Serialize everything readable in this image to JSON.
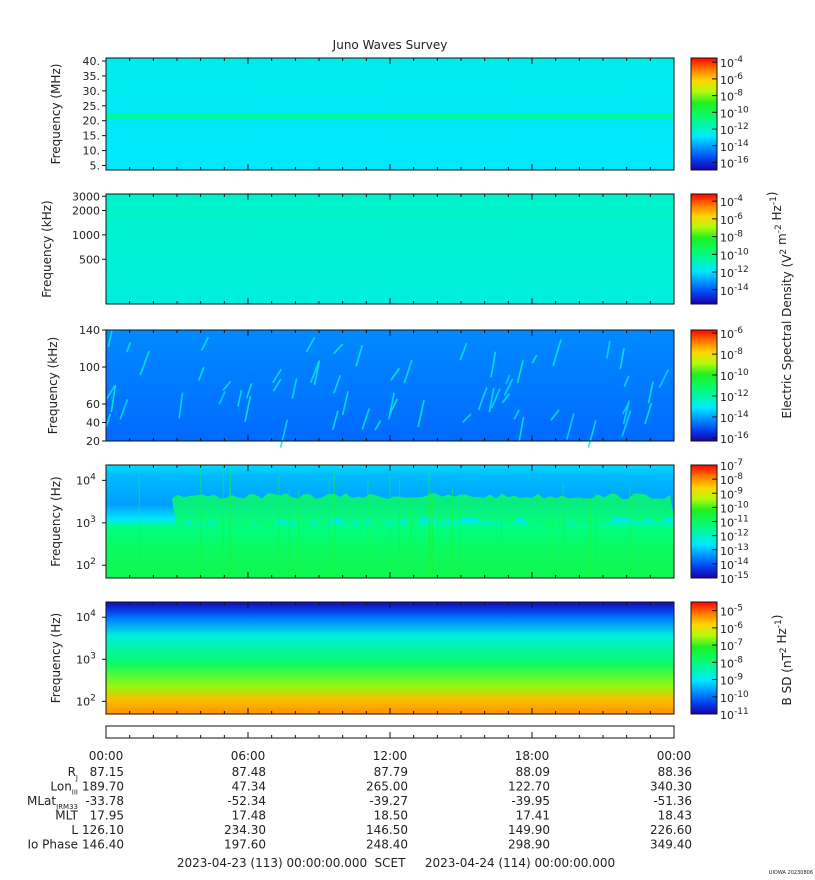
{
  "chart_data": {
    "type": "heatmap",
    "title": "Juno Waves Survey",
    "time_range": {
      "start_label": "2023-04-23 (113) 00:00:00.000",
      "mid_label": "SCET",
      "end_label": "2023-04-24 (114) 00:00:00.000"
    },
    "time_ticks": [
      "00:00",
      "06:00",
      "12:00",
      "18:00",
      "00:00"
    ],
    "panels": [
      {
        "ylabel": "Frequency (MHz)",
        "yscale": "linear",
        "yticks": [
          "40.",
          "35.",
          "30.",
          "25.",
          "20.",
          "15.",
          "10.",
          "5."
        ],
        "ytick_values": [
          40,
          35,
          30,
          25,
          20,
          15,
          10,
          5
        ],
        "ylim": [
          3.5,
          41
        ],
        "colorbar_ticks": [
          "10^-4",
          "10^-6",
          "10^-8",
          "10^-10",
          "10^-12",
          "10^-14",
          "10^-16"
        ],
        "colorbar_exp": [
          "-4",
          "-6",
          "-8",
          "-10",
          "-12",
          "-14",
          "-16"
        ],
        "colorbar_range_exp": [
          -3.5,
          -16.9
        ],
        "background_exp": -12.9,
        "bands": [
          {
            "center": 21.5,
            "width": 2.2,
            "level_exp": -11.3
          }
        ]
      },
      {
        "ylabel": "Frequency (kHz)",
        "yscale": "log",
        "yticks": [
          "3000",
          "2000",
          "1000",
          "500"
        ],
        "ytick_values": [
          3000,
          2000,
          1000,
          500
        ],
        "ylim": [
          140,
          3200
        ],
        "colorbar_ticks": [
          "10^-4",
          "10^-6",
          "10^-8",
          "10^-10",
          "10^-12",
          "10^-14"
        ],
        "colorbar_exp": [
          "-4",
          "-6",
          "-8",
          "-10",
          "-12",
          "-14"
        ],
        "colorbar_range_exp": [
          -3.2,
          -15.6
        ],
        "background_exp": -11.4,
        "bands": [
          {
            "center": 1800,
            "width": 120,
            "level_exp": -10.8
          }
        ]
      },
      {
        "ylabel": "Frequency (kHz)",
        "yscale": "linear",
        "yticks": [
          "140",
          "100",
          "60",
          "40",
          "20"
        ],
        "ytick_values": [
          140,
          100,
          60,
          40,
          20
        ],
        "ylim": [
          20,
          140
        ],
        "colorbar_ticks": [
          "10^-6",
          "10^-8",
          "10^-10",
          "10^-12",
          "10^-14",
          "10^-16"
        ],
        "colorbar_exp": [
          "-6",
          "-8",
          "-10",
          "-12",
          "-14",
          "-16"
        ],
        "colorbar_range_exp": [
          -5.7,
          -16.3
        ],
        "background_exp": -14.6
      },
      {
        "ylabel": "Frequency (Hz)",
        "yscale": "log",
        "yticks": [
          "10^4",
          "10^3",
          "10^2"
        ],
        "ytick_values": [
          10000,
          1000,
          100
        ],
        "ylim": [
          50,
          23000
        ],
        "colorbar_ticks": [
          "10^-7",
          "10^-8",
          "10^-9",
          "10^-10",
          "10^-11",
          "10^-12",
          "10^-13",
          "10^-14",
          "10^-15"
        ],
        "colorbar_exp": [
          "-7",
          "-8",
          "-9",
          "-10",
          "-11",
          "-12",
          "-13",
          "-14",
          "-15"
        ],
        "colorbar_range_exp": [
          -7,
          -15
        ],
        "background_exp": -13.3
      },
      {
        "ylabel": "Frequency (Hz)",
        "yscale": "log",
        "yticks": [
          "10^4",
          "10^3",
          "10^2"
        ],
        "ytick_values": [
          10000,
          1000,
          100
        ],
        "ylim": [
          50,
          23000
        ],
        "colorbar_ticks": [
          "10^-5",
          "10^-6",
          "10^-7",
          "10^-8",
          "10^-9",
          "10^-10",
          "10^-11"
        ],
        "colorbar_exp": [
          "-5",
          "-6",
          "-7",
          "-8",
          "-9",
          "-10",
          "-11"
        ],
        "colorbar_range_exp": [
          -4.5,
          -11
        ],
        "background_exp": -10.1
      }
    ],
    "colorbar_label_efield": "Electric Spectral Density (V^2 m^-2 Hz^-1)",
    "colorbar_label_bfield": "B SD (nT^2 Hz^-1)",
    "ephemeris": [
      {
        "label": "R",
        "sub": "J",
        "values": [
          "87.15",
          "87.48",
          "87.79",
          "88.09",
          "88.36"
        ]
      },
      {
        "label": "Lon",
        "sub": "III",
        "values": [
          "189.70",
          "47.34",
          "265.00",
          "122.70",
          "340.30"
        ]
      },
      {
        "label": "MLat",
        "sub": "JRM33",
        "values": [
          "-33.78",
          "-52.34",
          "-39.27",
          "-39.95",
          "-51.36"
        ]
      },
      {
        "label": "MLT",
        "sub": "",
        "values": [
          "17.95",
          "17.48",
          "18.50",
          "17.41",
          "18.43"
        ]
      },
      {
        "label": "L",
        "sub": "",
        "values": [
          "126.10",
          "234.30",
          "146.50",
          "149.90",
          "226.60"
        ]
      },
      {
        "label": "Io Phase",
        "sub": "",
        "values": [
          "146.40",
          "197.60",
          "248.40",
          "298.90",
          "349.40"
        ]
      }
    ]
  },
  "footer_tag": "UIOWA 20230806"
}
